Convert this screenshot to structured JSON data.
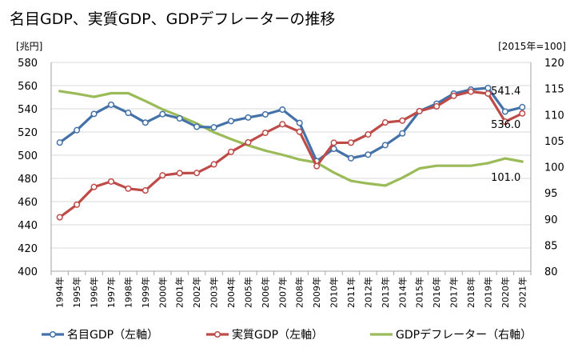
{
  "chart_data": {
    "type": "line",
    "title": "名目GDP、実質GDP、GDPデフレーターの推移",
    "y_left_unit": "[兆円]",
    "y_right_unit": "[2015年=100]",
    "y_left_lim": [
      400,
      580
    ],
    "y_right_lim": [
      80,
      120
    ],
    "y_left_ticks": [
      400,
      420,
      440,
      460,
      480,
      500,
      520,
      540,
      560,
      580
    ],
    "y_right_ticks": [
      80,
      85,
      90,
      95,
      100,
      105,
      110,
      115,
      120
    ],
    "categories": [
      "1994年",
      "1995年",
      "1996年",
      "1997年",
      "1998年",
      "1999年",
      "2000年",
      "2001年",
      "2002年",
      "2003年",
      "2004年",
      "2005年",
      "2006年",
      "2007年",
      "2008年",
      "2009年",
      "2010年",
      "2011年",
      "2012年",
      "2013年",
      "2014年",
      "2015年",
      "2016年",
      "2017年",
      "2018年",
      "2019年",
      "2020年",
      "2021年"
    ],
    "series": [
      {
        "name": "名目GDP（左軸）",
        "axis": "left",
        "color": "#4472A8",
        "markers": true,
        "values": [
          510.9,
          521.6,
          535.6,
          543.5,
          536.5,
          528.1,
          535.4,
          531.7,
          524.5,
          524.0,
          529.4,
          532.5,
          535.2,
          539.3,
          527.8,
          494.9,
          505.5,
          497.4,
          500.5,
          508.7,
          518.8,
          538.0,
          544.4,
          553.1,
          556.6,
          557.9,
          537.6,
          541.4
        ]
      },
      {
        "name": "実質GDP（左軸）",
        "axis": "left",
        "color": "#BE4B48",
        "markers": true,
        "values": [
          446.5,
          457.4,
          472.6,
          477.3,
          471.2,
          469.6,
          482.6,
          484.5,
          484.7,
          492.1,
          502.9,
          511.1,
          519.3,
          526.7,
          520.2,
          490.6,
          510.7,
          510.8,
          517.9,
          528.2,
          529.8,
          538.0,
          542.1,
          551.2,
          554.8,
          553.1,
          528.9,
          536.0
        ]
      },
      {
        "name": "GDPデフレーター（右軸）",
        "axis": "right",
        "color": "#9BBB59",
        "markers": false,
        "values": [
          114.5,
          114.0,
          113.4,
          114.1,
          114.1,
          112.6,
          111.0,
          109.7,
          108.3,
          106.6,
          105.3,
          104.1,
          103.1,
          102.3,
          101.4,
          100.8,
          98.9,
          97.3,
          96.8,
          96.4,
          97.9,
          99.7,
          100.2,
          100.2,
          100.2,
          100.7,
          101.6,
          101.0
        ]
      }
    ],
    "data_labels": [
      {
        "series": 0,
        "index": 27,
        "text": "541.4"
      },
      {
        "series": 1,
        "index": 27,
        "text": "536.0"
      },
      {
        "series": 2,
        "index": 27,
        "text": "101.0"
      }
    ],
    "grid": "horizontal",
    "legend": "bottom"
  }
}
